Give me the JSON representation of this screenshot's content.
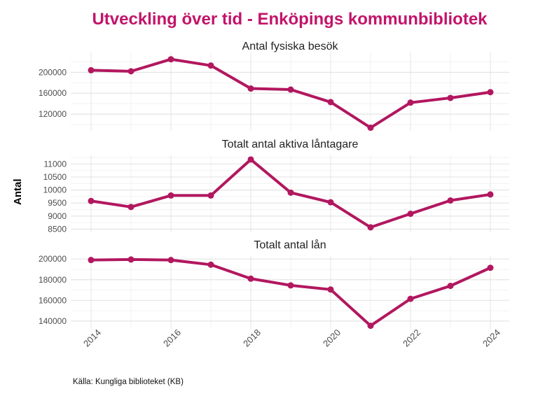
{
  "title": "Utveckling över tid - Enköpings kommunbibliotek",
  "y_axis_label": "Antal",
  "caption": "Källa: Kungliga biblioteket (KB)",
  "colors": {
    "line": "#B2175F",
    "point": "#B2175F",
    "title": "#C2146A",
    "subplot_title": "#222222",
    "tick_label": "#4D4D4D",
    "grid_major": "#E4E4E4",
    "grid_minor": "#F2F2F2"
  },
  "x_ticks_shown": [
    "2014",
    "2016",
    "2018",
    "2020",
    "2022",
    "2024"
  ],
  "chart_data": [
    {
      "type": "line",
      "title": "Antal fysiska besök",
      "xlabel": "",
      "ylabel": "Antal",
      "x": [
        2014,
        2015,
        2016,
        2017,
        2018,
        2019,
        2020,
        2021,
        2022,
        2023,
        2024
      ],
      "values": [
        204000,
        202000,
        225000,
        213000,
        169000,
        167000,
        143000,
        94000,
        142000,
        151000,
        162000
      ],
      "ylim": [
        88000,
        238000
      ],
      "yticks_major": [
        120000,
        160000,
        200000
      ],
      "yticks_minor": [
        100000,
        140000,
        180000,
        220000
      ],
      "grid": true,
      "legend": false
    },
    {
      "type": "line",
      "title": "Totalt antal aktiva låntagare",
      "xlabel": "",
      "ylabel": "Antal",
      "x": [
        2014,
        2015,
        2016,
        2017,
        2018,
        2019,
        2020,
        2021,
        2022,
        2023,
        2024
      ],
      "values": [
        9580,
        9350,
        9790,
        9790,
        11170,
        9900,
        9530,
        8570,
        9090,
        9600,
        9830
      ],
      "ylim": [
        8380,
        11330
      ],
      "yticks_major": [
        8500,
        9000,
        9500,
        10000,
        10500,
        11000
      ],
      "yticks_minor": [
        8750,
        9250,
        9750,
        10250,
        10750,
        11250
      ],
      "grid": true,
      "legend": false
    },
    {
      "type": "line",
      "title": "Totalt antal lån",
      "xlabel": "",
      "ylabel": "Antal",
      "x": [
        2014,
        2015,
        2016,
        2017,
        2018,
        2019,
        2020,
        2021,
        2022,
        2023,
        2024
      ],
      "values": [
        199000,
        199500,
        199000,
        194500,
        181000,
        174500,
        170500,
        135500,
        161500,
        174000,
        191500
      ],
      "ylim": [
        132500,
        203500
      ],
      "yticks_major": [
        140000,
        160000,
        180000,
        200000
      ],
      "yticks_minor": [
        150000,
        170000,
        190000
      ],
      "grid": true,
      "legend": false
    }
  ]
}
